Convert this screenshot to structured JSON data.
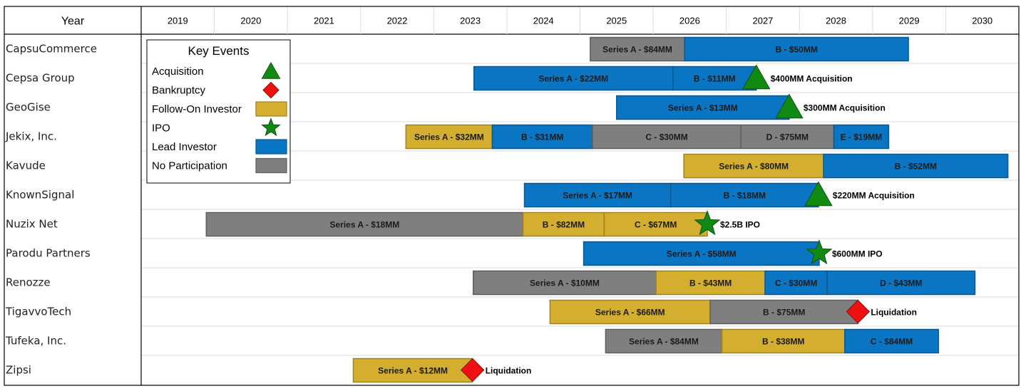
{
  "chart_data": {
    "type": "gantt",
    "header": "Year",
    "years": [
      "2019",
      "2020",
      "2021",
      "2022",
      "2023",
      "2024",
      "2025",
      "2026",
      "2027",
      "2028",
      "2029",
      "2030"
    ],
    "x_range": [
      2018.5,
      2030.5
    ],
    "colors": {
      "Lead Investor": "#0a75c2",
      "Follow-On Investor": "#d4ae2e",
      "No Participation": "#7f7f7f",
      "Acquisition": "#118a11",
      "Bankruptcy": "#ee1111",
      "IPO": "#118a11"
    },
    "legend": {
      "title": "Key Events",
      "placement": "top-left",
      "items": [
        {
          "label": "Acquisition",
          "shape": "triangle"
        },
        {
          "label": "Bankruptcy",
          "shape": "diamond"
        },
        {
          "label": "Follow-On Investor",
          "shape": "rect"
        },
        {
          "label": "IPO",
          "shape": "star"
        },
        {
          "label": "Lead Investor",
          "shape": "rect"
        },
        {
          "label": "No Participation",
          "shape": "rect"
        }
      ]
    },
    "rows": [
      {
        "company": "CapsuCommerce",
        "segments": [
          {
            "label": "Series A - $84MM",
            "start": 2024.64,
            "end": 2025.93,
            "type": "No Participation"
          },
          {
            "label": "B - $50MM",
            "start": 2025.93,
            "end": 2028.99,
            "type": "Lead Investor"
          }
        ],
        "event": null
      },
      {
        "company": "Cepsa Group",
        "segments": [
          {
            "label": "Series A - $22MM",
            "start": 2023.05,
            "end": 2025.77,
            "type": "Lead Investor"
          },
          {
            "label": "B - $11MM",
            "start": 2025.77,
            "end": 2026.91,
            "type": "Lead Investor"
          }
        ],
        "event": {
          "type": "Acquisition",
          "at": 2026.91,
          "label": "$400MM Acquisition"
        }
      },
      {
        "company": "GeoGise",
        "segments": [
          {
            "label": "Series A - $13MM",
            "start": 2025.0,
            "end": 2027.36,
            "type": "Lead Investor"
          }
        ],
        "event": {
          "type": "Acquisition",
          "at": 2027.36,
          "label": "$300MM Acquisition"
        }
      },
      {
        "company": "Jekix, Inc.",
        "segments": [
          {
            "label": "Series A - $32MM",
            "start": 2022.12,
            "end": 2023.3,
            "type": "Follow-On Investor"
          },
          {
            "label": "B - $31MM",
            "start": 2023.3,
            "end": 2024.67,
            "type": "Lead Investor"
          },
          {
            "label": "C - $30MM",
            "start": 2024.67,
            "end": 2026.7,
            "type": "No Participation"
          },
          {
            "label": "D - $75MM",
            "start": 2026.7,
            "end": 2027.97,
            "type": "No Participation"
          },
          {
            "label": "E - $19MM",
            "start": 2027.97,
            "end": 2028.72,
            "type": "Lead Investor"
          }
        ],
        "event": null
      },
      {
        "company": "Kavude",
        "segments": [
          {
            "label": "Series A - $80MM",
            "start": 2025.92,
            "end": 2027.83,
            "type": "Follow-On Investor"
          },
          {
            "label": "B - $52MM",
            "start": 2027.83,
            "end": 2030.35,
            "type": "Lead Investor"
          }
        ],
        "event": null
      },
      {
        "company": "KnownSignal",
        "segments": [
          {
            "label": "Series A - $17MM",
            "start": 2023.74,
            "end": 2025.74,
            "type": "Lead Investor"
          },
          {
            "label": "B - $18MM",
            "start": 2025.74,
            "end": 2027.76,
            "type": "Lead Investor"
          }
        ],
        "event": {
          "type": "Acquisition",
          "at": 2027.76,
          "label": "$220MM Acquisition"
        }
      },
      {
        "company": "Nuzix Net",
        "segments": [
          {
            "label": "Series A - $18MM",
            "start": 2019.39,
            "end": 2023.72,
            "type": "No Participation"
          },
          {
            "label": "B - $82MM",
            "start": 2023.72,
            "end": 2024.83,
            "type": "Follow-On Investor"
          },
          {
            "label": "C - $67MM",
            "start": 2024.83,
            "end": 2026.24,
            "type": "Follow-On Investor"
          }
        ],
        "event": {
          "type": "IPO",
          "at": 2026.24,
          "label": "$2.5B IPO"
        }
      },
      {
        "company": "Parodu Partners",
        "segments": [
          {
            "label": "Series A - $58MM",
            "start": 2024.55,
            "end": 2027.77,
            "type": "Lead Investor"
          }
        ],
        "event": {
          "type": "IPO",
          "at": 2027.77,
          "label": "$600MM IPO"
        }
      },
      {
        "company": "Renozze",
        "segments": [
          {
            "label": "Series A - $10MM",
            "start": 2023.04,
            "end": 2025.54,
            "type": "No Participation"
          },
          {
            "label": "B - $43MM",
            "start": 2025.54,
            "end": 2027.03,
            "type": "Follow-On Investor"
          },
          {
            "label": "C - $30MM",
            "start": 2027.03,
            "end": 2027.88,
            "type": "Lead Investor"
          },
          {
            "label": "D - $43MM",
            "start": 2027.88,
            "end": 2029.9,
            "type": "Lead Investor"
          }
        ],
        "event": null
      },
      {
        "company": "TigavvoTech",
        "segments": [
          {
            "label": "Series A - $66MM",
            "start": 2024.09,
            "end": 2026.28,
            "type": "Follow-On Investor"
          },
          {
            "label": "B - $75MM",
            "start": 2026.28,
            "end": 2028.3,
            "type": "No Participation"
          }
        ],
        "event": {
          "type": "Bankruptcy",
          "at": 2028.3,
          "label": "Liquidation"
        }
      },
      {
        "company": "Tufeka, Inc.",
        "segments": [
          {
            "label": "Series A - $84MM",
            "start": 2024.85,
            "end": 2026.44,
            "type": "No Participation"
          },
          {
            "label": "B - $38MM",
            "start": 2026.44,
            "end": 2028.12,
            "type": "Follow-On Investor"
          },
          {
            "label": "C - $84MM",
            "start": 2028.12,
            "end": 2029.4,
            "type": "Lead Investor"
          }
        ],
        "event": null
      },
      {
        "company": "Zipsi",
        "segments": [
          {
            "label": "Series A - $12MM",
            "start": 2021.4,
            "end": 2023.03,
            "type": "Follow-On Investor"
          }
        ],
        "event": {
          "type": "Bankruptcy",
          "at": 2023.03,
          "label": "Liquidation"
        }
      }
    ]
  }
}
